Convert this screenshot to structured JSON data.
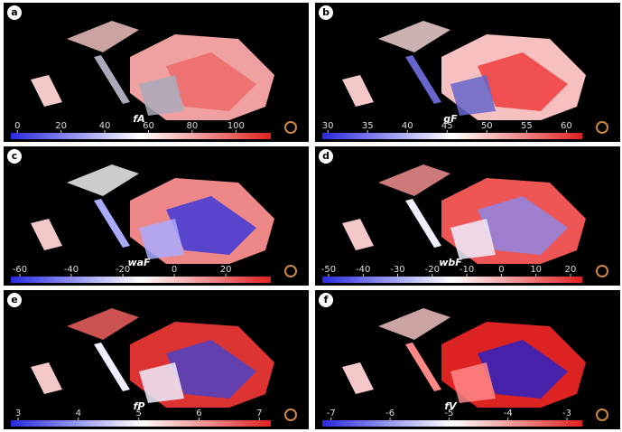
{
  "panels": [
    {
      "label": "a",
      "variable": "fA",
      "colorbar": {
        "lim": [
          -3,
          116
        ],
        "ticks": [
          0,
          20,
          40,
          60,
          80,
          100
        ]
      }
    },
    {
      "label": "b",
      "variable": "gF",
      "colorbar": {
        "lim": [
          29.3,
          62
        ],
        "ticks": [
          30,
          35,
          40,
          45,
          50,
          55,
          60
        ]
      }
    },
    {
      "label": "c",
      "variable": "waF",
      "colorbar": {
        "lim": [
          -63.5,
          37.5
        ],
        "ticks": [
          -60,
          -40,
          -20,
          0,
          20
        ]
      }
    },
    {
      "label": "d",
      "variable": "wbF",
      "colorbar": {
        "lim": [
          -51.8,
          23.4
        ],
        "ticks": [
          -50,
          -40,
          -30,
          -20,
          -10,
          0,
          10,
          20
        ]
      }
    },
    {
      "label": "e",
      "variable": "fP",
      "colorbar": {
        "lim": [
          2.88,
          7.19
        ],
        "ticks": [
          3,
          4,
          5,
          6,
          7
        ]
      }
    },
    {
      "label": "f",
      "variable": "fV",
      "colorbar": {
        "lim": [
          -7.15,
          -2.74
        ],
        "ticks": [
          -7,
          -6,
          -5,
          -4,
          -3
        ]
      }
    }
  ]
}
